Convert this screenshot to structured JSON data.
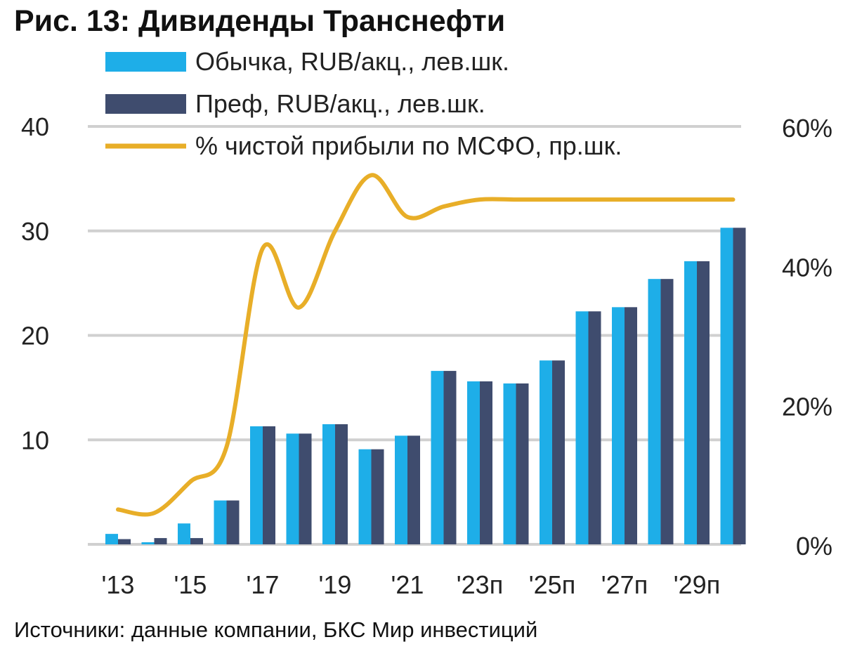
{
  "chart_data": {
    "type": "bar",
    "title": "Рис. 13: Дивиденды Транснефти",
    "source": "Источники: данные компании, БКС Мир инвестиций",
    "categories": [
      "2013",
      "2014",
      "2015",
      "2016",
      "2017",
      "2018",
      "2019",
      "2020",
      "2021",
      "2022",
      "2023п",
      "2024п",
      "2025п",
      "2026п",
      "2027п",
      "2028п",
      "2029п",
      "2030п"
    ],
    "x_tick_labels": [
      "'13",
      "'15",
      "'17",
      "'19",
      "'21",
      "'23п",
      "'25п",
      "'27п",
      "'29п"
    ],
    "x_tick_categories": [
      0,
      2,
      4,
      6,
      8,
      10,
      12,
      14,
      16
    ],
    "series": [
      {
        "name": "Обычка, RUB/акц., лев.шк.",
        "kind": "bar",
        "axis": "left",
        "color": "#1eaee8",
        "values": [
          1.0,
          0.2,
          2.0,
          4.2,
          11.3,
          10.6,
          11.5,
          9.1,
          10.4,
          16.6,
          15.6,
          15.4,
          17.6,
          22.3,
          22.7,
          25.4,
          27.1,
          30.3
        ]
      },
      {
        "name": "Преф, RUB/акц., лев.шк.",
        "kind": "bar",
        "axis": "left",
        "color": "#3f4c6e",
        "values": [
          0.5,
          0.6,
          0.6,
          4.2,
          11.3,
          10.6,
          11.5,
          9.1,
          10.4,
          16.6,
          15.6,
          15.4,
          17.6,
          22.3,
          22.7,
          25.4,
          27.1,
          30.3
        ]
      },
      {
        "name": "% чистой прибыли по МСФО, пр.шк.",
        "kind": "line",
        "axis": "right",
        "color": "#e8ae28",
        "values": [
          5.0,
          4.5,
          9.0,
          14.0,
          42.5,
          34.0,
          45.0,
          53.0,
          47.0,
          48.5,
          49.5,
          49.5,
          49.5,
          49.5,
          49.5,
          49.5,
          49.5,
          49.5
        ]
      }
    ],
    "y_left": {
      "min": 0,
      "max": 40,
      "ticks": [
        10,
        20,
        30,
        40
      ],
      "tick_labels": [
        "10",
        "20",
        "30",
        "40"
      ]
    },
    "y_right": {
      "min": 0,
      "max": 60,
      "ticks": [
        0,
        20,
        40,
        60
      ],
      "tick_labels": [
        "0%",
        "20%",
        "40%",
        "60%"
      ]
    },
    "grid": true,
    "legend_position": "top"
  }
}
